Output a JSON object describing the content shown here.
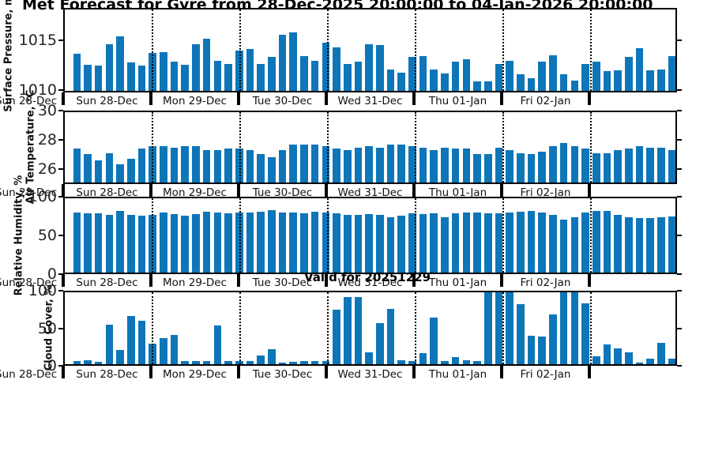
{
  "figure": {
    "title": "Met Forecast for Gyre from 28-Dec-2025 20:00:00 to 04-Jan-2026 20:00:00",
    "annotation": "Valid for 20251229"
  },
  "colors": {
    "bar": "#0e76b8",
    "axis": "#000000",
    "tick_text": "#262626"
  },
  "x_axis": {
    "edge_label": "Sun 28-Dec",
    "day_labels": [
      "Sun 28-Dec",
      "Mon 29-Dec",
      "Tue 30-Dec",
      "Wed 31-Dec",
      "Thu 01-Jan",
      "Fri 02-Jan",
      ""
    ]
  },
  "chart_data": [
    {
      "type": "bar",
      "id": "surface-pressure",
      "ylabel": "Surface Pressure, mb",
      "yticks": [
        {
          "label": "1015",
          "value": 1015
        },
        {
          "label": "1010",
          "value": 1010
        }
      ],
      "ylim": [
        1009.8,
        1018.2
      ],
      "bars_per_day": 8,
      "values": [
        1013.6,
        1012.5,
        1012.4,
        1014.6,
        1015.4,
        1012.7,
        1012.4,
        1013.7,
        1013.8,
        1012.8,
        1012.5,
        1014.6,
        1015.2,
        1012.9,
        1012.6,
        1014.0,
        1014.1,
        1012.6,
        1013.3,
        1015.6,
        1015.8,
        1013.4,
        1012.9,
        1014.8,
        1014.3,
        1012.6,
        1012.8,
        1014.6,
        1014.5,
        1012.0,
        1011.7,
        1013.3,
        1013.4,
        1012.0,
        1011.6,
        1012.8,
        1013.1,
        1010.8,
        1010.8,
        1012.6,
        1012.9,
        1011.5,
        1011.1,
        1012.8,
        1013.5,
        1011.5,
        1010.9,
        1012.6,
        1012.8,
        1011.8,
        1011.9,
        1013.3,
        1014.2,
        1011.9,
        1012.0,
        1013.4
      ]
    },
    {
      "type": "bar",
      "id": "air-temperature",
      "ylabel": "Air Temperature, °C",
      "yticks": [
        {
          "label": "30",
          "value": 30
        },
        {
          "label": "28",
          "value": 28
        },
        {
          "label": "26",
          "value": 26
        }
      ],
      "ylim": [
        25,
        30
      ],
      "bars_per_day": 8,
      "values": [
        27.4,
        27.0,
        26.6,
        27.1,
        26.3,
        26.7,
        27.4,
        27.6,
        27.6,
        27.5,
        27.6,
        27.6,
        27.3,
        27.3,
        27.4,
        27.4,
        27.3,
        27.0,
        26.8,
        27.3,
        27.7,
        27.7,
        27.7,
        27.6,
        27.4,
        27.3,
        27.5,
        27.6,
        27.5,
        27.7,
        27.7,
        27.6,
        27.5,
        27.3,
        27.5,
        27.4,
        27.4,
        27.0,
        27.0,
        27.5,
        27.3,
        27.1,
        27.0,
        27.2,
        27.6,
        27.8,
        27.6,
        27.4,
        27.1,
        27.1,
        27.3,
        27.4,
        27.6,
        27.5,
        27.5,
        27.3
      ]
    },
    {
      "type": "bar",
      "id": "relative-humidity",
      "ylabel": "Relative Humidity, %",
      "yticks": [
        {
          "label": "100",
          "value": 100
        },
        {
          "label": "50",
          "value": 50
        },
        {
          "label": "0",
          "value": 0
        }
      ],
      "ylim": [
        0,
        100
      ],
      "bars_per_day": 8,
      "values": [
        81,
        80,
        80,
        78,
        83,
        78,
        77,
        78,
        81,
        79,
        77,
        79,
        82,
        81,
        80,
        81,
        81,
        82,
        84,
        81,
        81,
        80,
        82,
        81,
        80,
        78,
        78,
        79,
        78,
        74,
        77,
        80,
        79,
        80,
        75,
        80,
        81,
        81,
        80,
        80,
        81,
        82,
        83,
        81,
        78,
        71,
        74,
        81,
        83,
        83,
        78,
        75,
        73,
        73,
        74,
        76
      ]
    },
    {
      "type": "bar",
      "id": "cloud-cover",
      "ylabel": "Cloud Cover, %",
      "yticks": [
        {
          "label": "100",
          "value": 100
        },
        {
          "label": "50",
          "value": 50
        },
        {
          "label": "0",
          "value": 0
        }
      ],
      "ylim": [
        0,
        100
      ],
      "bars_per_day": 8,
      "values": [
        4,
        6,
        3,
        55,
        20,
        67,
        60,
        29,
        36,
        41,
        4,
        4,
        4,
        54,
        4,
        4,
        4,
        12,
        21,
        2,
        3,
        4,
        4,
        4,
        76,
        93,
        93,
        17,
        57,
        77,
        5,
        4,
        15,
        65,
        4,
        10,
        5,
        4,
        100,
        100,
        100,
        84,
        40,
        39,
        69,
        100,
        100,
        85,
        11,
        28,
        22,
        16,
        2,
        8,
        30,
        8
      ]
    }
  ]
}
